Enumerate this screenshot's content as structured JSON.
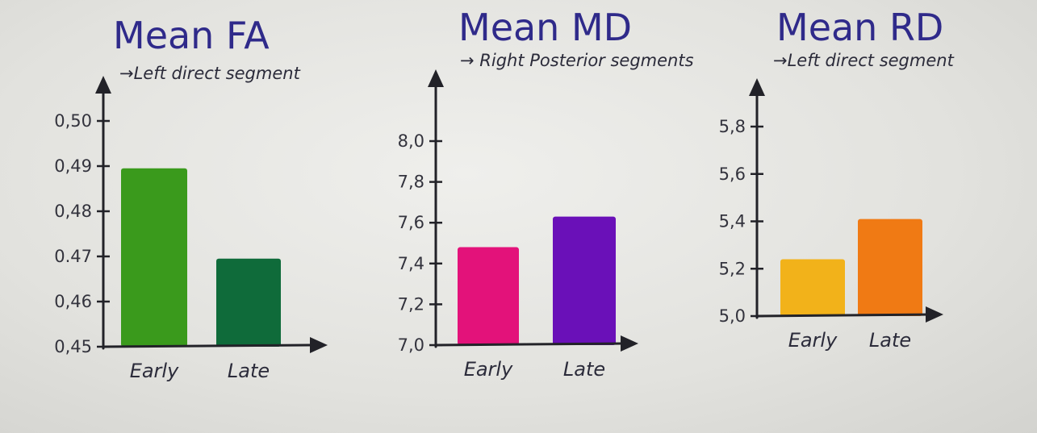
{
  "chart_data": [
    {
      "type": "bar",
      "title": "Mean FA",
      "subtitle": "→Left direct segment",
      "categories": [
        "Early",
        "Late"
      ],
      "values": [
        0.4895,
        0.4695
      ],
      "colors": [
        "#3a9a1c",
        "#0f6b3a"
      ],
      "ylim": [
        0.45,
        0.5
      ],
      "yticks": [
        0.45,
        0.46,
        0.47,
        0.48,
        0.49,
        0.5
      ],
      "ytick_labels": [
        "0,45",
        "0,46",
        "0.47",
        "0,48",
        "0,49",
        "0,50"
      ]
    },
    {
      "type": "bar",
      "title": "Mean MD",
      "subtitle": "→ Right Posterior segments",
      "categories": [
        "Early",
        "Late"
      ],
      "values": [
        7.48,
        7.63
      ],
      "colors": [
        "#e3127a",
        "#6a10b8"
      ],
      "ylim": [
        7.0,
        8.0
      ],
      "yticks": [
        7.0,
        7.2,
        7.4,
        7.6,
        7.8,
        8.0
      ],
      "ytick_labels": [
        "7,0",
        "7,2",
        "7,4",
        "7,6",
        "7,8",
        "8,0"
      ]
    },
    {
      "type": "bar",
      "title": "Mean RD",
      "subtitle": "→Left direct segment",
      "categories": [
        "Early",
        "Late"
      ],
      "values": [
        5.24,
        5.41
      ],
      "colors": [
        "#f2b21a",
        "#f07a14"
      ],
      "ylim": [
        5.0,
        5.8
      ],
      "yticks": [
        5.0,
        5.2,
        5.4,
        5.6,
        5.8
      ],
      "ytick_labels": [
        "5,0",
        "5,2",
        "5,4",
        "5,6",
        "5,8"
      ]
    }
  ]
}
